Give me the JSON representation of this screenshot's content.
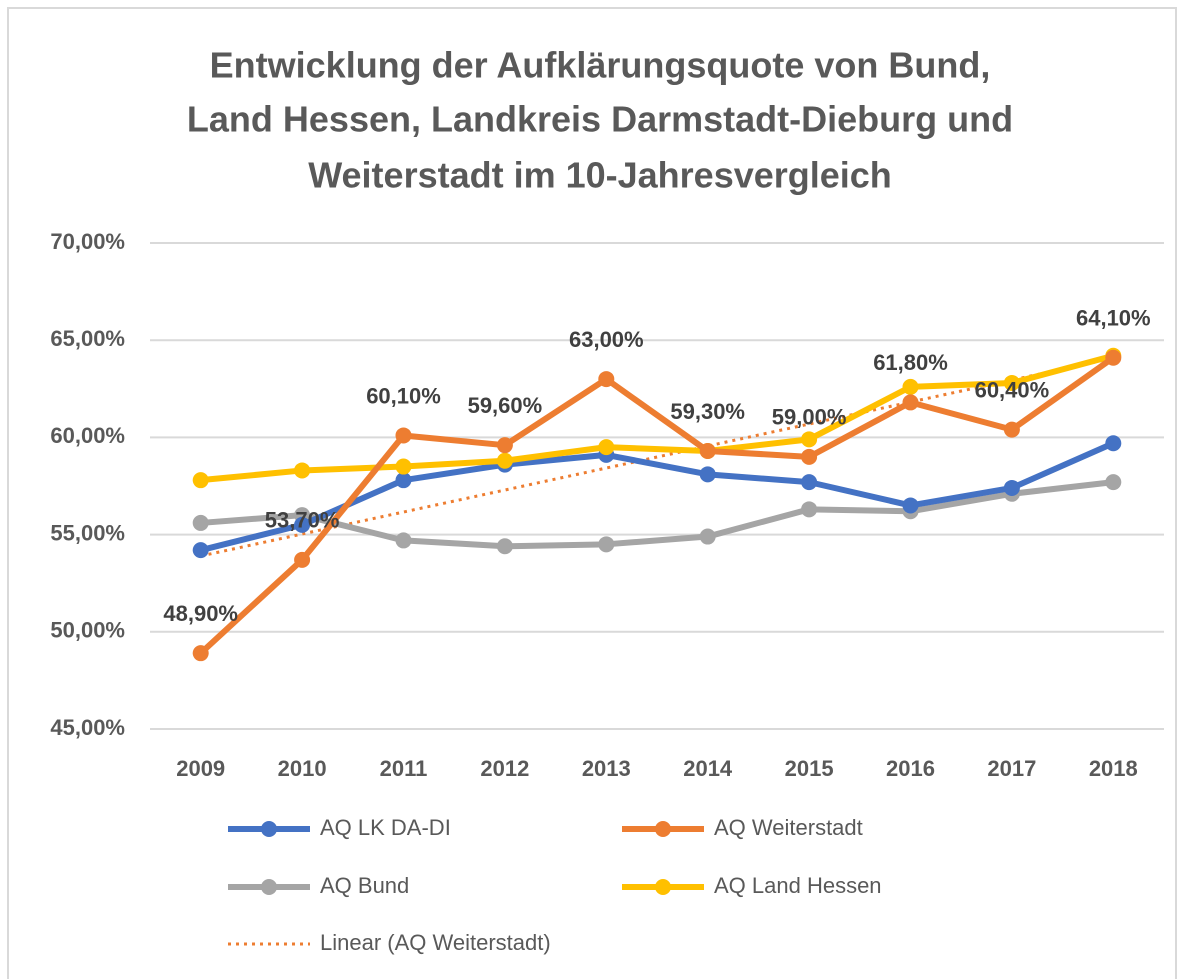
{
  "chart_data": {
    "type": "line",
    "title": [
      "Entwicklung der Aufklärungsquote von Bund,",
      "Land Hessen, Landkreis Darmstadt-Dieburg und",
      "Weiterstadt im 10-Jahresvergleich"
    ],
    "categories": [
      "2009",
      "2010",
      "2011",
      "2012",
      "2013",
      "2014",
      "2015",
      "2016",
      "2017",
      "2018"
    ],
    "series": [
      {
        "name": "AQ LK DA-DI",
        "color": "#4472c4",
        "values": [
          54.2,
          55.5,
          57.8,
          58.6,
          59.1,
          58.1,
          57.7,
          56.5,
          57.4,
          59.7
        ]
      },
      {
        "name": "AQ Weiterstadt",
        "color": "#ed7d31",
        "values": [
          48.9,
          53.7,
          60.1,
          59.6,
          63.0,
          59.3,
          59.0,
          61.8,
          60.4,
          64.1
        ],
        "value_labels": [
          "48,90%",
          "53,70%",
          "60,10%",
          "59,60%",
          "63,00%",
          "59,30%",
          "59,00%",
          "61,80%",
          "60,40%",
          "64,10%"
        ]
      },
      {
        "name": "AQ Bund",
        "color": "#a5a5a5",
        "values": [
          55.6,
          56.0,
          54.7,
          54.4,
          54.5,
          54.9,
          56.3,
          56.2,
          57.1,
          57.7
        ]
      },
      {
        "name": "AQ Land Hessen",
        "color": "#ffc000",
        "values": [
          57.8,
          58.3,
          58.5,
          58.8,
          59.5,
          59.3,
          59.9,
          62.6,
          62.8,
          64.2
        ]
      }
    ],
    "trendline": {
      "name": "Linear (AQ Weiterstadt)",
      "series_index": 1,
      "color": "#ed7d31",
      "style": "dotted"
    },
    "ylim": [
      45,
      70
    ],
    "yticks": [
      {
        "value": 45,
        "label": "45,00%"
      },
      {
        "value": 50,
        "label": "50,00%"
      },
      {
        "value": 55,
        "label": "55,00%"
      },
      {
        "value": 60,
        "label": "60,00%"
      },
      {
        "value": 65,
        "label": "65,00%"
      },
      {
        "value": 70,
        "label": "70,00%"
      }
    ],
    "grid": true,
    "legend": "bottom"
  }
}
